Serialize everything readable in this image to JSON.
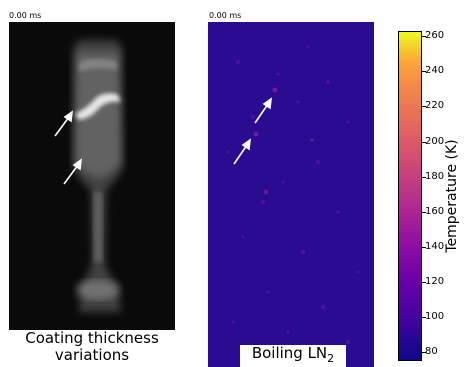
{
  "left_panel": {
    "timestamp": "0.00  ms",
    "caption_line1": "Coating thickness",
    "caption_line2": "variations"
  },
  "right_panel": {
    "timestamp": "0.00  ms",
    "caption": "Boiling LN",
    "caption_subscript": "2"
  },
  "colorbar": {
    "label": "Temperature (K)",
    "ticks": [
      "260",
      "240",
      "220",
      "200",
      "180",
      "160",
      "140",
      "120",
      "100",
      "80"
    ],
    "colormap": "plasma",
    "min": 80,
    "max": 260
  },
  "colors": {
    "left_background": "#0a0a0a",
    "right_background": "#2a0c91",
    "arrow": "#ffffff"
  }
}
